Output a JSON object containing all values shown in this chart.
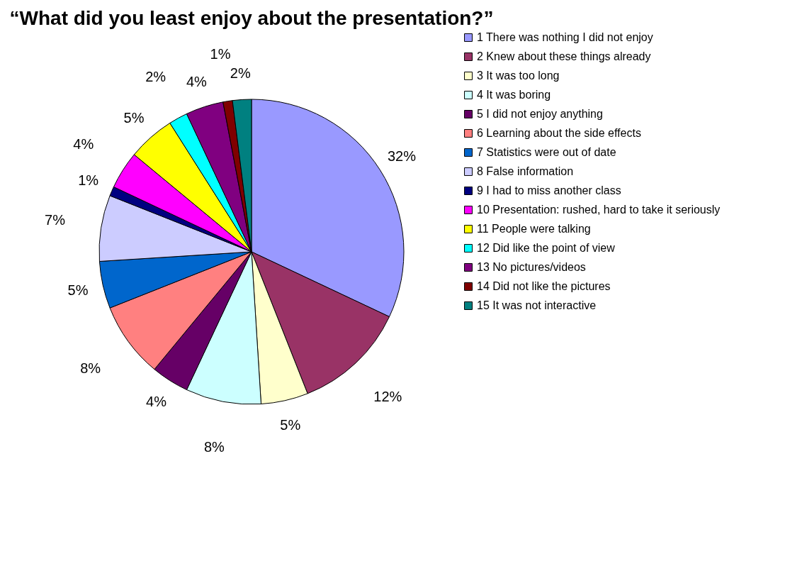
{
  "chart_data": {
    "type": "pie",
    "title": "“What did you least enjoy about the presentation?”",
    "categories": [
      "1 There was nothing I did not enjoy",
      "2 Knew about these things already",
      "3 It was too long",
      "4 It was boring",
      "5 I did not enjoy anything",
      "6 Learning about the side effects",
      "7 Statistics were out of date",
      "8 False information",
      "9 I had to miss another class",
      "10 Presentation: rushed, hard to take it seriously",
      "11 People were talking",
      "12 Did like the point of view",
      "13 No pictures/videos",
      "14 Did not like the pictures",
      "15 It was not interactive"
    ],
    "values": [
      32,
      12,
      5,
      8,
      4,
      8,
      5,
      7,
      1,
      4,
      5,
      2,
      4,
      1,
      2
    ],
    "value_labels": [
      "32%",
      "12%",
      "5%",
      "8%",
      "4%",
      "8%",
      "5%",
      "7%",
      "1%",
      "4%",
      "5%",
      "2%",
      "4%",
      "1%",
      "2%"
    ],
    "colors": [
      "#9999ff",
      "#993366",
      "#ffffcc",
      "#ccffff",
      "#660066",
      "#ff8080",
      "#0066cc",
      "#ccccff",
      "#000080",
      "#ff00ff",
      "#ffff00",
      "#00ffff",
      "#800080",
      "#800000",
      "#008080"
    ],
    "legend": "right"
  }
}
